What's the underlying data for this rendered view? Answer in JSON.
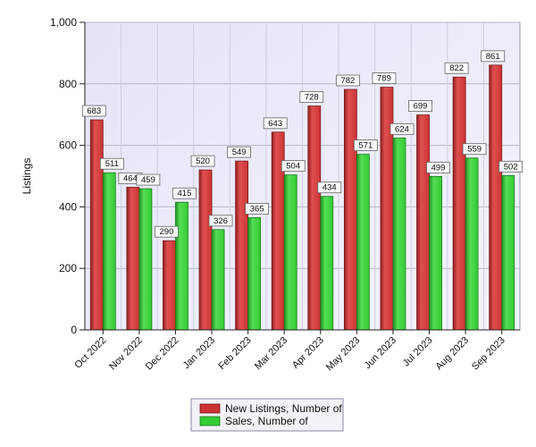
{
  "chart_data": {
    "type": "bar",
    "categories": [
      "Oct 2022",
      "Nov 2022",
      "Dec 2022",
      "Jan 2023",
      "Feb 2023",
      "Mar 2023",
      "Apr 2023",
      "May 2023",
      "Jun 2023",
      "Jul 2023",
      "Aug 2023",
      "Sep 2023"
    ],
    "series": [
      {
        "name": "New Listings, Number of",
        "color": "#cc3333",
        "values": [
          683,
          464,
          290,
          520,
          549,
          643,
          728,
          782,
          789,
          699,
          822,
          861
        ]
      },
      {
        "name": "Sales, Number of",
        "color": "#33cc33",
        "values": [
          511,
          459,
          415,
          326,
          365,
          504,
          434,
          571,
          624,
          499,
          559,
          502
        ]
      }
    ],
    "title": "",
    "xlabel": "",
    "ylabel": "Listings",
    "ylim": [
      0,
      1000
    ],
    "yticks": [
      0,
      200,
      400,
      600,
      800,
      1000
    ],
    "ytick_labels": [
      "0",
      "200",
      "400",
      "600",
      "800",
      "1,000"
    ],
    "grid": true,
    "legend_position": "bottom-center",
    "plot_background": "#ececfb"
  }
}
